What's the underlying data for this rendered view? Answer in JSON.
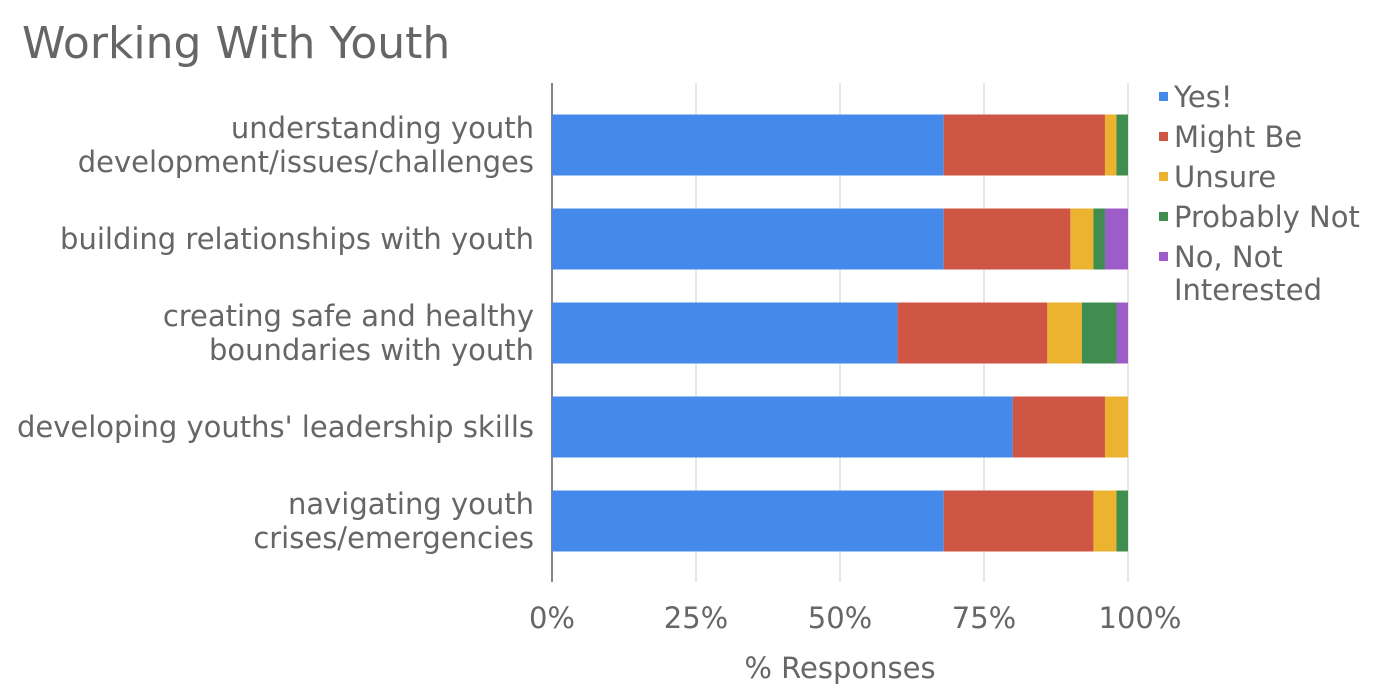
{
  "chart_data": {
    "type": "bar",
    "orientation": "horizontal",
    "stacked": "percent",
    "title": "Working With Youth",
    "xlabel": "% Responses",
    "ylabel": "",
    "xlim": [
      0,
      100
    ],
    "xticks": [
      "0%",
      "25%",
      "50%",
      "75%",
      "100%"
    ],
    "grid": true,
    "legend_position": "right",
    "categories": [
      [
        "understanding youth",
        "development/issues/challenges"
      ],
      [
        "building relationships with youth"
      ],
      [
        "creating safe and healthy",
        "boundaries with youth"
      ],
      [
        "developing youths' leadership skills"
      ],
      [
        "navigating youth",
        "crises/emergencies"
      ]
    ],
    "series": [
      {
        "name": "Yes!",
        "legend_lines": [
          "Yes!"
        ],
        "color": "#4589ea",
        "values": [
          68,
          68,
          60,
          80,
          68
        ]
      },
      {
        "name": "Might Be",
        "legend_lines": [
          "Might Be"
        ],
        "color": "#cf5645",
        "values": [
          28,
          22,
          26,
          16,
          26
        ]
      },
      {
        "name": "Unsure",
        "legend_lines": [
          "Unsure"
        ],
        "color": "#ecb331",
        "values": [
          2,
          4,
          6,
          4,
          4
        ]
      },
      {
        "name": "Probably Not",
        "legend_lines": [
          "Probably Not"
        ],
        "color": "#3f8d4f",
        "values": [
          2,
          2,
          6,
          0,
          2
        ]
      },
      {
        "name": "No, Not Interested",
        "legend_lines": [
          "No, Not",
          "Interested"
        ],
        "color": "#9d5dc8",
        "values": [
          0,
          4,
          2,
          0,
          0
        ]
      }
    ]
  }
}
